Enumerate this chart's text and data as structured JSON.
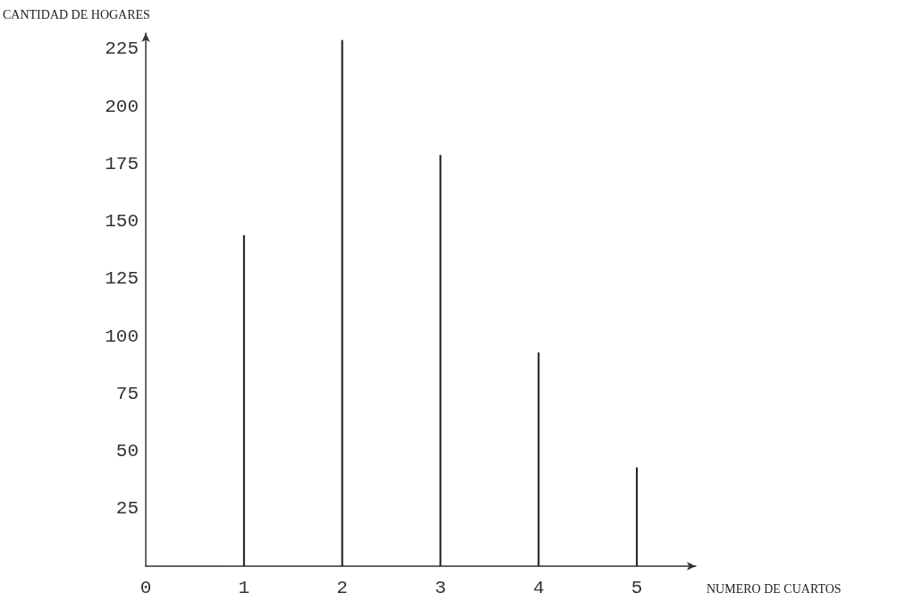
{
  "chart_data": {
    "type": "bar",
    "xlabel": "NUMERO DE CUARTOS",
    "ylabel": "CANTIDAD DE HOGARES",
    "x": [
      1,
      2,
      3,
      4,
      5
    ],
    "values": [
      144,
      229,
      179,
      93,
      43
    ],
    "color": "#1a1a1a",
    "xlim": [
      0,
      5.6
    ],
    "xticks": [
      0,
      1,
      2,
      3,
      4,
      5
    ],
    "ylim": [
      0,
      232
    ],
    "yticks": [
      25,
      50,
      75,
      100,
      125,
      150,
      175,
      200,
      225
    ],
    "grid": false
  }
}
